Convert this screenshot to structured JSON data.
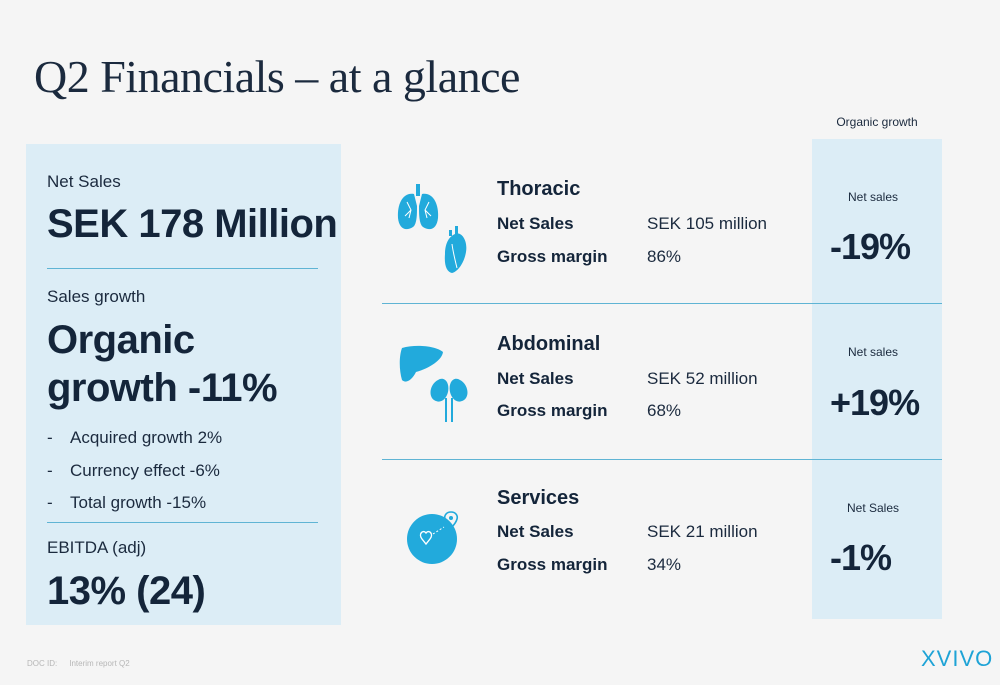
{
  "title": "Q2 Financials – at a glance",
  "summary": {
    "net_sales_label": "Net Sales",
    "net_sales_value": "SEK 178 Million",
    "sales_growth_label": "Sales growth",
    "organic_line1": "Organic",
    "organic_line2": "growth -11%",
    "bullets": [
      "Acquired growth 2%",
      "Currency effect -6%",
      "Total growth -15%"
    ],
    "bullet_marker": "-",
    "ebitda_label": "EBITDA (adj)",
    "ebitda_value": "13% (24)"
  },
  "organic_growth_header": "Organic growth",
  "segments": [
    {
      "name": "Thoracic",
      "icon": "lungs-heart-icon",
      "net_sales_label": "Net Sales",
      "net_sales_value": "SEK 105 million",
      "gross_margin_label": "Gross margin",
      "gross_margin_value": "86%",
      "growth_label": "Net sales",
      "growth_value": "-19%"
    },
    {
      "name": "Abdominal",
      "icon": "liver-kidney-icon",
      "net_sales_label": "Net Sales",
      "net_sales_value": "SEK 52 million",
      "gross_margin_label": "Gross margin",
      "gross_margin_value": "68%",
      "growth_label": "Net sales",
      "growth_value": "+19%"
    },
    {
      "name": "Services",
      "icon": "services-heart-pin-icon",
      "net_sales_label": "Net Sales",
      "net_sales_value": "SEK 21 million",
      "gross_margin_label": "Gross margin",
      "gross_margin_value": "34%",
      "growth_label": "Net Sales",
      "growth_value": "-1%"
    }
  ],
  "footer": {
    "doc_id": "DOC ID:",
    "doc_name": "Interim report Q2"
  },
  "logo": "XVIVO",
  "colors": {
    "accent": "#1ea3d6",
    "panel": "#dcedf6",
    "divider": "#5fb4d4",
    "text": "#14253a"
  }
}
